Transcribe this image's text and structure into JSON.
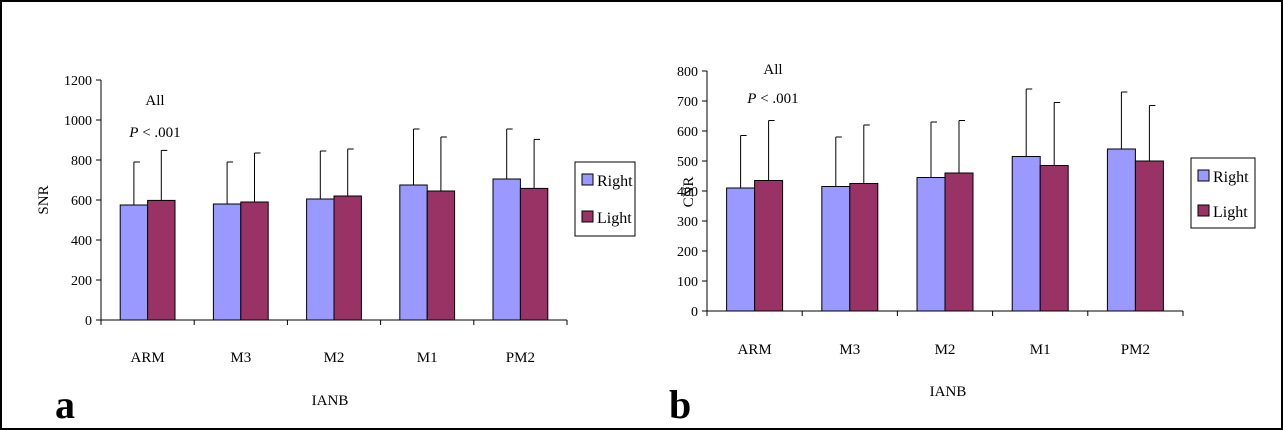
{
  "colors": {
    "right": "#9999FF",
    "light": "#993366",
    "axis": "#000000",
    "error": "#000000"
  },
  "chart_data": [
    {
      "type": "bar",
      "panel_label": "a",
      "categories": [
        "ARM",
        "M3",
        "M2",
        "M1",
        "PM2"
      ],
      "xlabel": "IANB",
      "ylabel": "SNR",
      "ylim": [
        0,
        1200
      ],
      "yticks": [
        "0",
        "200",
        "400",
        "600",
        "800",
        "1000",
        "1200"
      ],
      "series": [
        {
          "name": "Right",
          "values": [
            575,
            580,
            605,
            675,
            705
          ],
          "errors": [
            215,
            210,
            240,
            280,
            250
          ]
        },
        {
          "name": "Light",
          "values": [
            598,
            590,
            620,
            645,
            658
          ],
          "errors": [
            250,
            245,
            235,
            270,
            245
          ]
        }
      ],
      "annotation": {
        "line1": "All",
        "p_symbol": "P",
        "line2": " < .001"
      },
      "legend": [
        "Right",
        "Light"
      ]
    },
    {
      "type": "bar",
      "panel_label": "b",
      "categories": [
        "ARM",
        "M3",
        "M2",
        "M1",
        "PM2"
      ],
      "xlabel": "IANB",
      "ylabel": "CNR",
      "ylim": [
        0,
        800
      ],
      "yticks": [
        "0",
        "100",
        "200",
        "300",
        "400",
        "500",
        "600",
        "700",
        "800"
      ],
      "series": [
        {
          "name": "Right",
          "values": [
            410,
            415,
            445,
            515,
            540
          ],
          "errors": [
            175,
            165,
            185,
            225,
            190
          ]
        },
        {
          "name": "Light",
          "values": [
            435,
            425,
            460,
            485,
            500
          ],
          "errors": [
            200,
            195,
            175,
            210,
            185
          ]
        }
      ],
      "annotation": {
        "line1": "All",
        "p_symbol": "P",
        "line2": " < .001"
      },
      "legend": [
        "Right",
        "Light"
      ]
    }
  ]
}
